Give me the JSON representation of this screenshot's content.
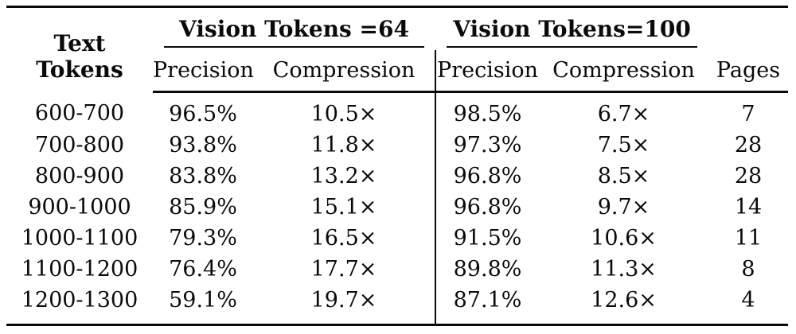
{
  "table": {
    "header": {
      "text_tokens": "Text Tokens",
      "group1": "Vision Tokens =64",
      "group2": "Vision Tokens=100",
      "precision": "Precision",
      "compression": "Compression",
      "pages": "Pages"
    },
    "rows": [
      {
        "range": "600-700",
        "p64": "96.5%",
        "c64": "10.5×",
        "p100": "98.5%",
        "c100": "6.7×",
        "pages": "7"
      },
      {
        "range": "700-800",
        "p64": "93.8%",
        "c64": "11.8×",
        "p100": "97.3%",
        "c100": "7.5×",
        "pages": "28"
      },
      {
        "range": "800-900",
        "p64": "83.8%",
        "c64": "13.2×",
        "p100": "96.8%",
        "c100": "8.5×",
        "pages": "28"
      },
      {
        "range": "900-1000",
        "p64": "85.9%",
        "c64": "15.1×",
        "p100": "96.8%",
        "c100": "9.7×",
        "pages": "14"
      },
      {
        "range": "1000-1100",
        "p64": "79.3%",
        "c64": "16.5×",
        "p100": "91.5%",
        "c100": "10.6×",
        "pages": "11"
      },
      {
        "range": "1100-1200",
        "p64": "76.4%",
        "c64": "17.7×",
        "p100": "89.8%",
        "c100": "11.3×",
        "pages": "8"
      },
      {
        "range": "1200-1300",
        "p64": "59.1%",
        "c64": "19.7×",
        "p100": "87.1%",
        "c100": "12.6×",
        "pages": "4"
      }
    ],
    "colors": {
      "text": "#0a0a0a",
      "background": "#ffffff",
      "rule": "#0a0a0a"
    }
  }
}
